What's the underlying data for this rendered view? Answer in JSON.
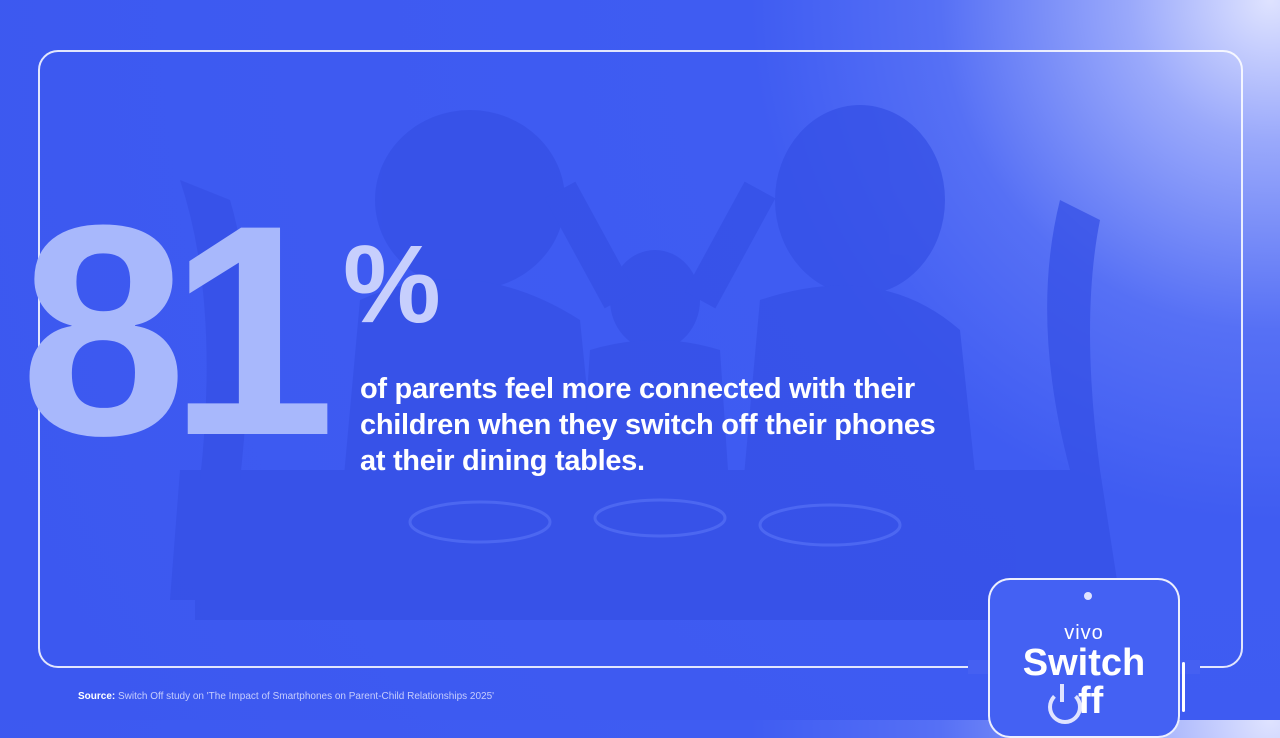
{
  "headline": {
    "number": "81",
    "percent": "%"
  },
  "statement": "of parents feel more connected with their children when they switch off their phones at their dining tables.",
  "source": {
    "label": "Source:",
    "text": "Switch Off study on 'The Impact of Smartphones on Parent-Child Relationships 2025'"
  },
  "logo": {
    "brand": "vivo",
    "line1": "Switch",
    "line2": "ff",
    "icon": "power-icon"
  },
  "colors": {
    "background": "#3c58f0",
    "number": "#a8b8fc",
    "text": "#ffffff"
  }
}
